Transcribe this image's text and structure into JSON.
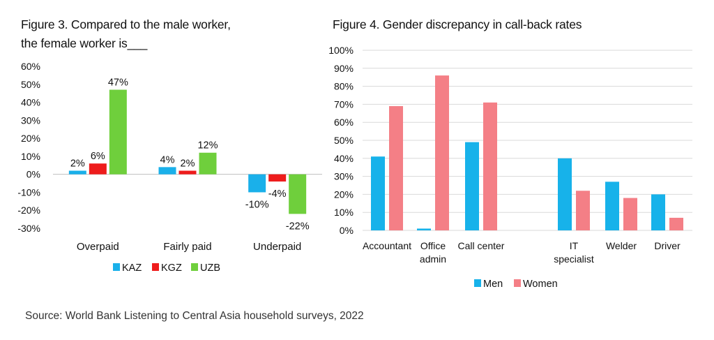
{
  "chart_data": [
    {
      "type": "bar",
      "title_lines": [
        "Figure 3. Compared to the male worker,",
        "the female worker is___"
      ],
      "categories": [
        "Overpaid",
        "Fairly paid",
        "Underpaid"
      ],
      "series": [
        {
          "name": "KAZ",
          "color": "#1ab0ea",
          "values": [
            2,
            4,
            -10
          ],
          "labels": [
            "2%",
            "4%",
            "-10%"
          ]
        },
        {
          "name": "KGZ",
          "color": "#ee1c1c",
          "values": [
            6,
            2,
            -4
          ],
          "labels": [
            "6%",
            "2%",
            "-4%"
          ]
        },
        {
          "name": "UZB",
          "color": "#6fcf3c",
          "values": [
            47,
            12,
            -22
          ],
          "labels": [
            "47%",
            "12%",
            "-22%"
          ]
        }
      ],
      "ylim": [
        -30,
        60
      ],
      "yticks": [
        60,
        50,
        40,
        30,
        20,
        10,
        0,
        -10,
        -20,
        -30
      ],
      "ytick_labels": [
        "60%",
        "50%",
        "40%",
        "30%",
        "20%",
        "10%",
        "0%",
        "-10%",
        "-20%",
        "-30%"
      ],
      "grid": false,
      "legend_position": "bottom"
    },
    {
      "type": "bar",
      "title": "Figure 4. Gender discrepancy in call-back rates",
      "categories": [
        [
          "Accountant"
        ],
        [
          "Office",
          "admin"
        ],
        [
          "Call center"
        ],
        [
          "IT",
          "specialist"
        ],
        [
          "Welder"
        ],
        [
          "Driver"
        ]
      ],
      "series": [
        {
          "name": "Men",
          "color": "#17b2ea",
          "values": [
            41,
            1,
            49,
            40,
            27,
            20
          ]
        },
        {
          "name": "Women",
          "color": "#f47f86",
          "values": [
            69,
            86,
            71,
            22,
            18,
            7
          ]
        }
      ],
      "ylim": [
        0,
        100
      ],
      "yticks": [
        100,
        90,
        80,
        70,
        60,
        50,
        40,
        30,
        20,
        10,
        0
      ],
      "ytick_labels": [
        "100%",
        "90%",
        "80%",
        "70%",
        "60%",
        "50%",
        "40%",
        "30%",
        "20%",
        "10%",
        "0%"
      ],
      "grid": true,
      "legend_position": "bottom"
    }
  ],
  "source": "Source: World Bank Listening to Central Asia household surveys, 2022"
}
